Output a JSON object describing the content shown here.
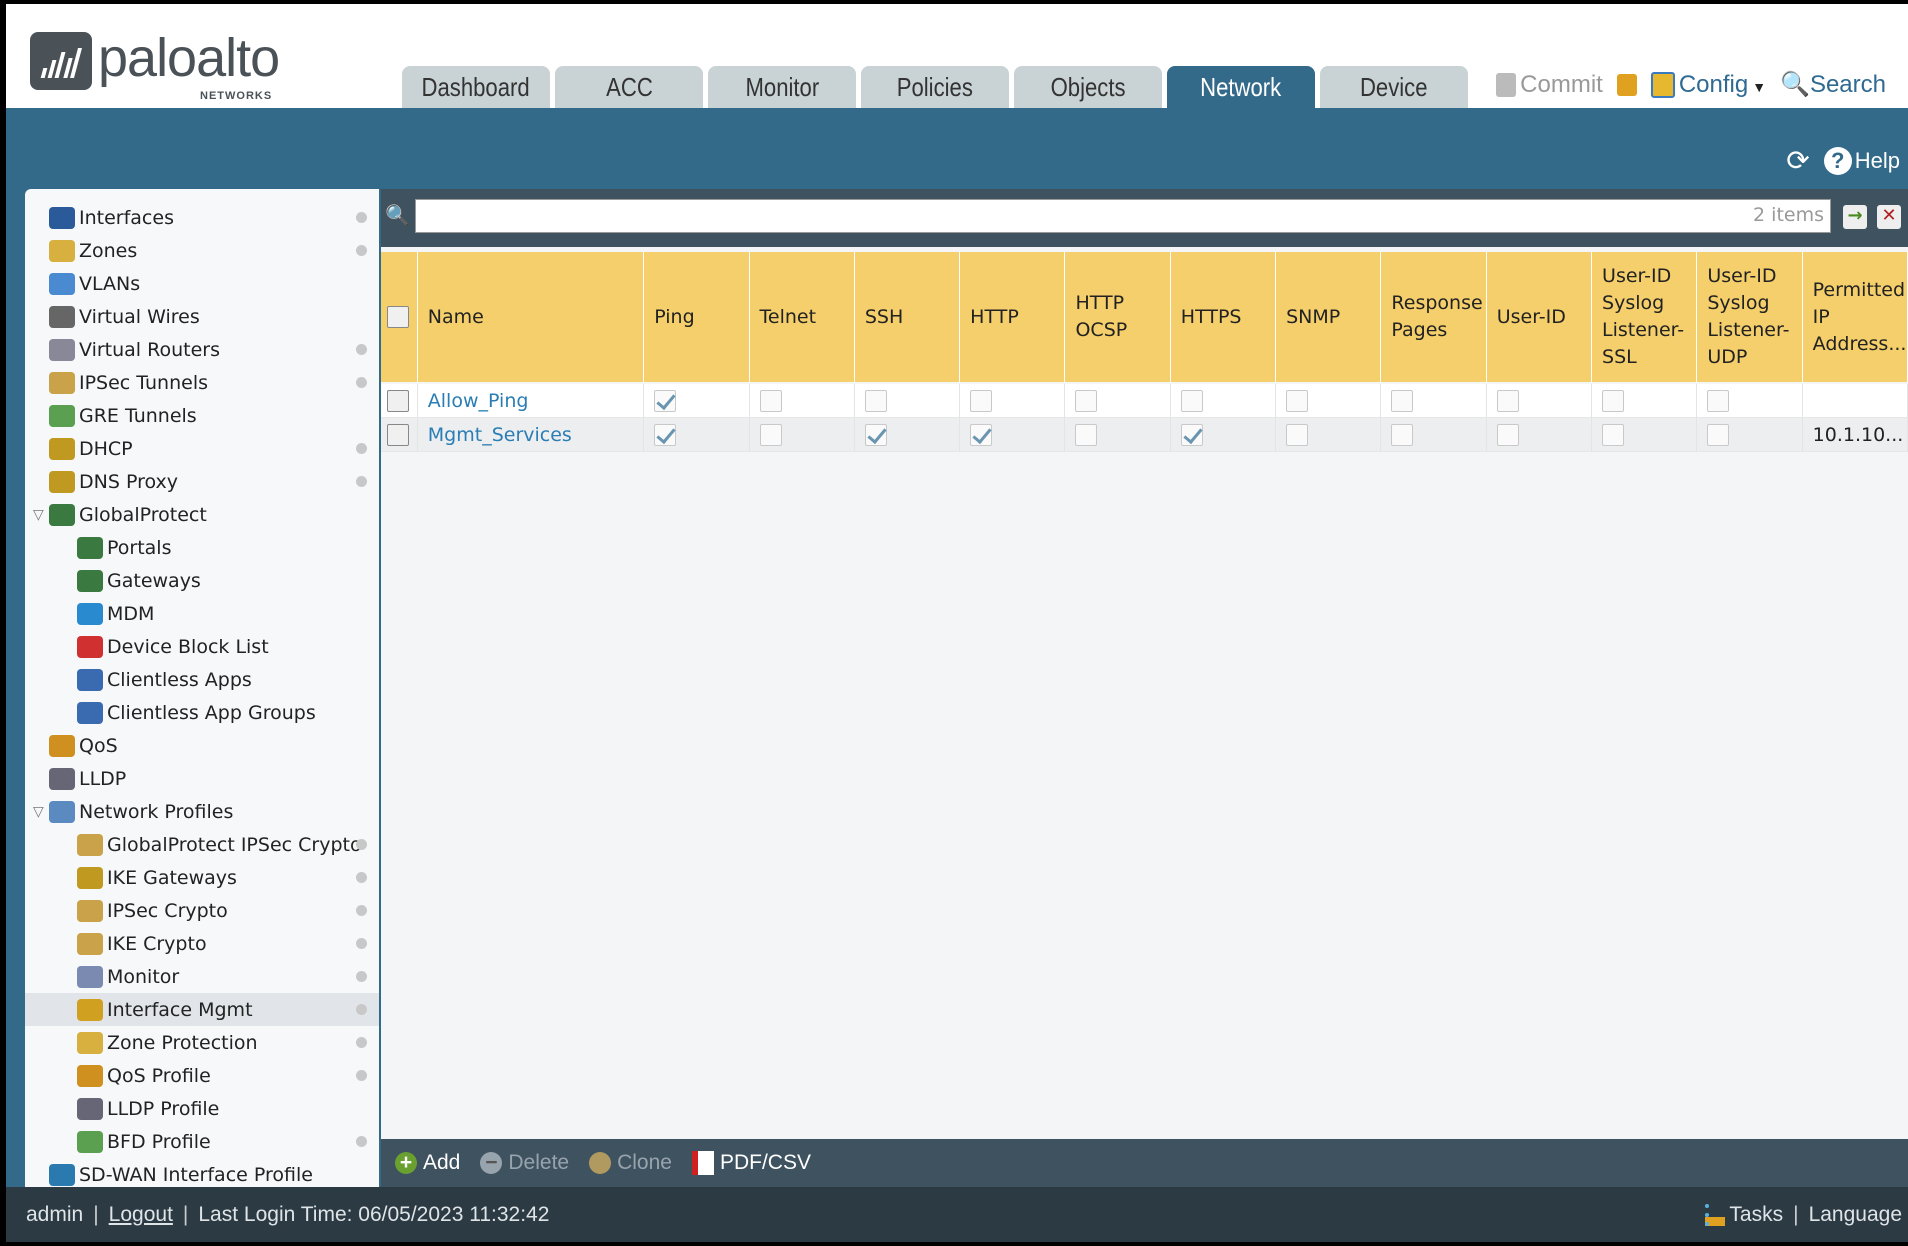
{
  "logo": {
    "brand": "paloalto",
    "sub": "NETWORKS"
  },
  "tabs": [
    {
      "label": "Dashboard"
    },
    {
      "label": "ACC"
    },
    {
      "label": "Monitor"
    },
    {
      "label": "Policies"
    },
    {
      "label": "Objects"
    },
    {
      "label": "Network",
      "active": true
    },
    {
      "label": "Device"
    }
  ],
  "header_actions": {
    "commit": "Commit",
    "config": "Config",
    "search": "Search",
    "help": "Help"
  },
  "sidebar": {
    "items": [
      {
        "label": "Interfaces",
        "level": 0,
        "dot": true,
        "color": "#2a5a9a"
      },
      {
        "label": "Zones",
        "level": 0,
        "dot": true,
        "color": "#d8b040"
      },
      {
        "label": "VLANs",
        "level": 0,
        "dot": false,
        "color": "#4a8ad0"
      },
      {
        "label": "Virtual Wires",
        "level": 0,
        "dot": false,
        "color": "#666"
      },
      {
        "label": "Virtual Routers",
        "level": 0,
        "dot": true,
        "color": "#889"
      },
      {
        "label": "IPSec Tunnels",
        "level": 0,
        "dot": true,
        "color": "#c9a24a"
      },
      {
        "label": "GRE Tunnels",
        "level": 0,
        "dot": false,
        "color": "#5aa050"
      },
      {
        "label": "DHCP",
        "level": 0,
        "dot": true,
        "color": "#c09a20"
      },
      {
        "label": "DNS Proxy",
        "level": 0,
        "dot": true,
        "color": "#c09a20"
      },
      {
        "label": "GlobalProtect",
        "level": 0,
        "dot": false,
        "expanded": true,
        "color": "#3a7a40"
      },
      {
        "label": "Portals",
        "level": 1,
        "dot": false,
        "color": "#3a7a40"
      },
      {
        "label": "Gateways",
        "level": 1,
        "dot": false,
        "color": "#3a7a40"
      },
      {
        "label": "MDM",
        "level": 1,
        "dot": false,
        "color": "#2a8ad0"
      },
      {
        "label": "Device Block List",
        "level": 1,
        "dot": false,
        "color": "#d03030"
      },
      {
        "label": "Clientless Apps",
        "level": 1,
        "dot": false,
        "color": "#3a6ab0"
      },
      {
        "label": "Clientless App Groups",
        "level": 1,
        "dot": false,
        "color": "#3a6ab0"
      },
      {
        "label": "QoS",
        "level": 0,
        "dot": false,
        "color": "#d09020"
      },
      {
        "label": "LLDP",
        "level": 0,
        "dot": false,
        "color": "#667"
      },
      {
        "label": "Network Profiles",
        "level": 0,
        "dot": false,
        "expanded": true,
        "color": "#5a8ac0"
      },
      {
        "label": "GlobalProtect IPSec Crypto",
        "level": 1,
        "dot": true,
        "color": "#c9a24a"
      },
      {
        "label": "IKE Gateways",
        "level": 1,
        "dot": true,
        "color": "#c09a20"
      },
      {
        "label": "IPSec Crypto",
        "level": 1,
        "dot": true,
        "color": "#c9a24a"
      },
      {
        "label": "IKE Crypto",
        "level": 1,
        "dot": true,
        "color": "#c9a24a"
      },
      {
        "label": "Monitor",
        "level": 1,
        "dot": true,
        "color": "#7a8ab0"
      },
      {
        "label": "Interface Mgmt",
        "level": 1,
        "dot": true,
        "selected": true,
        "color": "#d0a020"
      },
      {
        "label": "Zone Protection",
        "level": 1,
        "dot": true,
        "color": "#d8b040"
      },
      {
        "label": "QoS Profile",
        "level": 1,
        "dot": true,
        "color": "#d09020"
      },
      {
        "label": "LLDP Profile",
        "level": 1,
        "dot": false,
        "color": "#667"
      },
      {
        "label": "BFD Profile",
        "level": 1,
        "dot": true,
        "color": "#5aa050"
      },
      {
        "label": "SD-WAN Interface Profile",
        "level": 0,
        "dot": false,
        "color": "#2a7ab0"
      }
    ]
  },
  "filter": {
    "count": "2 items"
  },
  "columns": [
    "Name",
    "Ping",
    "Telnet",
    "SSH",
    "HTTP",
    "HTTP\nOCSP",
    "HTTPS",
    "SNMP",
    "Response\nPages",
    "User-ID",
    "User-ID\nSyslog\nListener-\nSSL",
    "User-ID\nSyslog\nListener-\nUDP",
    "Permitted\nIP\nAddress..."
  ],
  "rows": [
    {
      "name": "Allow_Ping",
      "checks": [
        true,
        false,
        false,
        false,
        false,
        false,
        false,
        false,
        false,
        false,
        false
      ],
      "permitted": ""
    },
    {
      "name": "Mgmt_Services",
      "checks": [
        true,
        false,
        true,
        true,
        false,
        true,
        false,
        false,
        false,
        false,
        false
      ],
      "permitted": "10.1.10..."
    }
  ],
  "toolbar": {
    "add": "Add",
    "delete": "Delete",
    "clone": "Clone",
    "pdf": "PDF/CSV"
  },
  "footer": {
    "user": "admin",
    "logout": "Logout",
    "last_login": "Last Login Time: 06/05/2023 11:32:42",
    "tasks": "Tasks",
    "language": "Language"
  }
}
